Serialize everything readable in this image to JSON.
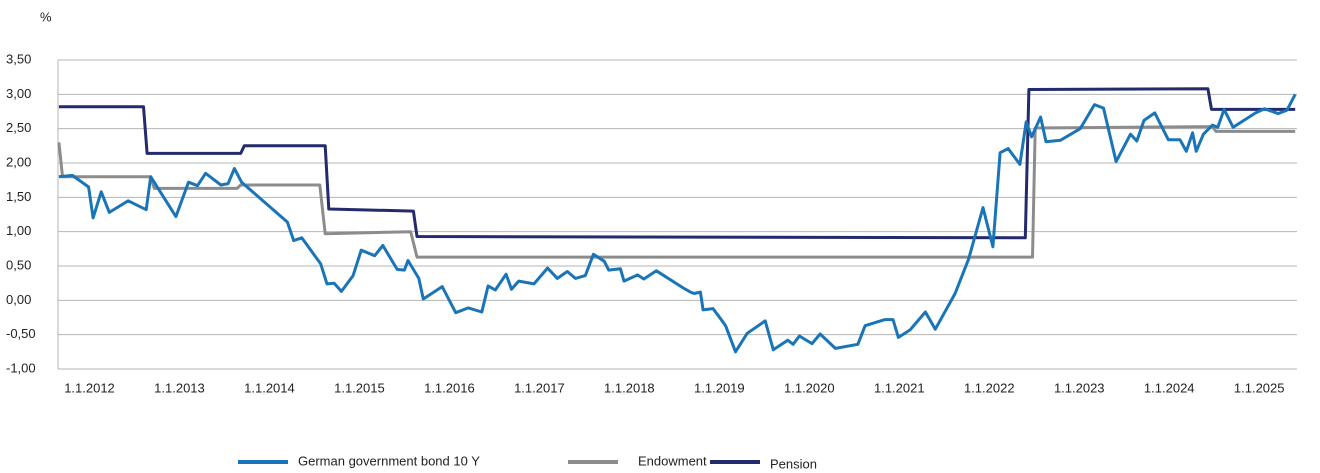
{
  "chart_data": {
    "type": "line",
    "y_label": "%",
    "xlim": [
      2011.65,
      2025.42
    ],
    "xticks": [
      {
        "value": 2012,
        "label": "1.1.2012"
      },
      {
        "value": 2013,
        "label": "1.1.2013"
      },
      {
        "value": 2014,
        "label": "1.1.2014"
      },
      {
        "value": 2015,
        "label": "1.1.2015"
      },
      {
        "value": 2016,
        "label": "1.1.2016"
      },
      {
        "value": 2017,
        "label": "1.1.2017"
      },
      {
        "value": 2018,
        "label": "1.1.2018"
      },
      {
        "value": 2019,
        "label": "1.1.2019"
      },
      {
        "value": 2020,
        "label": "1.1.2020"
      },
      {
        "value": 2021,
        "label": "1.1.2021"
      },
      {
        "value": 2022,
        "label": "1.1.2022"
      },
      {
        "value": 2023,
        "label": "1.1.2023"
      },
      {
        "value": 2024,
        "label": "1.1.2024"
      },
      {
        "value": 2025,
        "label": "1.1.2025"
      }
    ],
    "ylim": [
      -1,
      3.5
    ],
    "yticks": [
      {
        "value": -1,
        "label": "-1,00"
      },
      {
        "value": -0.5,
        "label": "-0,50"
      },
      {
        "value": 0,
        "label": "0,00"
      },
      {
        "value": 0.5,
        "label": "0,50"
      },
      {
        "value": 1,
        "label": "1,00"
      },
      {
        "value": 1.5,
        "label": "1,50"
      },
      {
        "value": 2,
        "label": "2,00"
      },
      {
        "value": 2.5,
        "label": "2,50"
      },
      {
        "value": 3,
        "label": "3,00"
      },
      {
        "value": 3.5,
        "label": "3,50"
      }
    ],
    "grid": true,
    "legend": "bottom",
    "series": [
      {
        "name": "German government bond 10 Y",
        "color": "#1a75b8",
        "x": [
          2011.66,
          2011.81,
          2011.99,
          2012.04,
          2012.13,
          2012.22,
          2012.43,
          2012.63,
          2012.68,
          2012.96,
          2013.1,
          2013.2,
          2013.29,
          2013.46,
          2013.54,
          2013.61,
          2013.69,
          2014.2,
          2014.27,
          2014.36,
          2014.57,
          2014.64,
          2014.72,
          2014.8,
          2014.93,
          2015.02,
          2015.17,
          2015.26,
          2015.42,
          2015.5,
          2015.54,
          2015.66,
          2015.71,
          2015.92,
          2016.07,
          2016.21,
          2016.36,
          2016.43,
          2016.51,
          2016.63,
          2016.69,
          2016.77,
          2016.94,
          2017.09,
          2017.2,
          2017.31,
          2017.4,
          2017.51,
          2017.6,
          2017.72,
          2017.77,
          2017.9,
          2017.94,
          2018.09,
          2018.16,
          2018.3,
          2018.6,
          2018.68,
          2018.72,
          2018.79,
          2018.82,
          2018.93,
          2019.01,
          2019.07,
          2019.18,
          2019.31,
          2019.51,
          2019.6,
          2019.76,
          2019.82,
          2019.89,
          2020.03,
          2020.12,
          2020.29,
          2020.54,
          2020.62,
          2020.84,
          2020.93,
          2020.99,
          2021.12,
          2021.29,
          2021.4,
          2021.62,
          2021.77,
          2021.93,
          2022.04,
          2022.12,
          2022.21,
          2022.34,
          2022.41,
          2022.47,
          2022.57,
          2022.63,
          2022.79,
          2023.01,
          2023.17,
          2023.27,
          2023.41,
          2023.57,
          2023.64,
          2023.72,
          2023.84,
          2023.99,
          2024.12,
          2024.19,
          2024.26,
          2024.3,
          2024.38,
          2024.48,
          2024.54,
          2024.61,
          2024.71,
          2024.96,
          2025.06,
          2025.21,
          2025.31,
          2025.4
        ],
        "values": [
          1.8,
          1.82,
          1.65,
          1.2,
          1.58,
          1.28,
          1.45,
          1.32,
          1.8,
          1.22,
          1.72,
          1.67,
          1.85,
          1.68,
          1.7,
          1.92,
          1.72,
          1.14,
          0.87,
          0.91,
          0.53,
          0.24,
          0.25,
          0.13,
          0.36,
          0.73,
          0.65,
          0.8,
          0.45,
          0.44,
          0.58,
          0.32,
          0.02,
          0.2,
          -0.18,
          -0.11,
          -0.17,
          0.21,
          0.15,
          0.38,
          0.16,
          0.28,
          0.24,
          0.47,
          0.32,
          0.42,
          0.32,
          0.36,
          0.67,
          0.57,
          0.44,
          0.46,
          0.28,
          0.37,
          0.31,
          0.43,
          0.18,
          0.12,
          0.1,
          0.12,
          -0.14,
          -0.12,
          -0.26,
          -0.37,
          -0.75,
          -0.48,
          -0.3,
          -0.72,
          -0.58,
          -0.64,
          -0.52,
          -0.63,
          -0.49,
          -0.7,
          -0.64,
          -0.37,
          -0.28,
          -0.28,
          -0.54,
          -0.43,
          -0.17,
          -0.42,
          0.1,
          0.6,
          1.35,
          0.78,
          2.15,
          2.21,
          1.98,
          2.6,
          2.38,
          2.67,
          2.31,
          2.33,
          2.5,
          2.85,
          2.8,
          2.02,
          2.42,
          2.32,
          2.62,
          2.73,
          2.34,
          2.34,
          2.17,
          2.44,
          2.17,
          2.42,
          2.55,
          2.52,
          2.78,
          2.52,
          2.73,
          2.79,
          2.72,
          2.77,
          3.0
        ]
      },
      {
        "name": "Endowment",
        "color": "#8c8c8c",
        "x": [
          2011.66,
          2011.7,
          2012.68,
          2012.72,
          2013.64,
          2013.68,
          2014.56,
          2014.62,
          2015.57,
          2015.64,
          2022.48,
          2022.51,
          2024.48,
          2024.52,
          2025.4
        ],
        "values": [
          2.3,
          1.8,
          1.8,
          1.63,
          1.63,
          1.68,
          1.68,
          0.97,
          1.0,
          0.63,
          0.63,
          2.51,
          2.53,
          2.46,
          2.46
        ]
      },
      {
        "name": "Pension",
        "color": "#232a6e",
        "x": [
          2011.66,
          2012.6,
          2012.64,
          2013.68,
          2013.72,
          2014.62,
          2014.66,
          2015.6,
          2015.64,
          2022.4,
          2022.44,
          2024.43,
          2024.47,
          2025.4
        ],
        "values": [
          2.82,
          2.82,
          2.14,
          2.14,
          2.25,
          2.25,
          1.33,
          1.3,
          0.93,
          0.91,
          3.07,
          3.08,
          2.78,
          2.78
        ]
      }
    ]
  }
}
